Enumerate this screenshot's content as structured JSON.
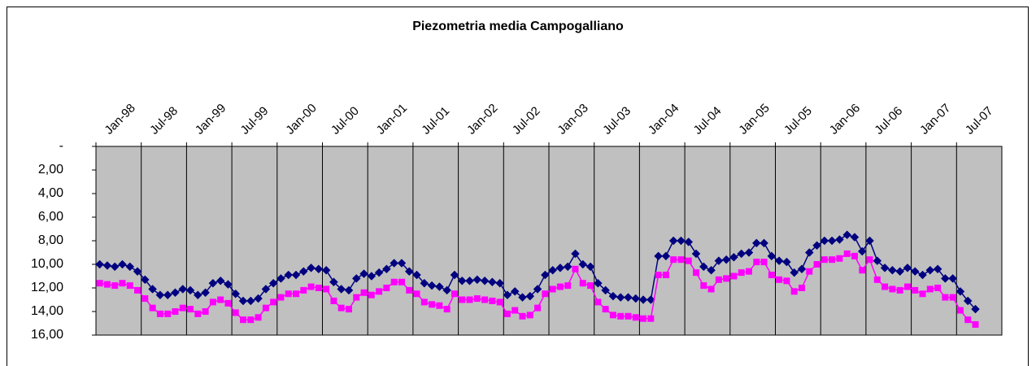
{
  "chart_data": {
    "type": "line",
    "title": "Piezometria media Campogalliano",
    "categories": [
      "Jan-98",
      null,
      null,
      null,
      null,
      null,
      "Jul-98",
      null,
      null,
      null,
      null,
      null,
      "Jan-99",
      null,
      null,
      null,
      null,
      null,
      "Jul-99",
      null,
      null,
      null,
      null,
      null,
      "Jan-00",
      null,
      null,
      null,
      null,
      null,
      "Jul-00",
      null,
      null,
      null,
      null,
      null,
      "Jan-01",
      null,
      null,
      null,
      null,
      null,
      "Jul-01",
      null,
      null,
      null,
      null,
      null,
      "Jan-02",
      null,
      null,
      null,
      null,
      null,
      "Jul-02",
      null,
      null,
      null,
      null,
      null,
      "Jan-03",
      null,
      null,
      null,
      null,
      null,
      "Jul-03",
      null,
      null,
      null,
      null,
      null,
      "Jan-04",
      null,
      null,
      null,
      null,
      null,
      "Jul-04",
      null,
      null,
      null,
      null,
      null,
      "Jan-05",
      null,
      null,
      null,
      null,
      null,
      "Jul-05",
      null,
      null,
      null,
      null,
      null,
      "Jan-06",
      null,
      null,
      null,
      null,
      null,
      "Jul-06",
      null,
      null,
      null,
      null,
      null,
      "Jan-07",
      null,
      null,
      null,
      null,
      null,
      "Jul-07",
      null,
      null,
      null,
      null,
      null
    ],
    "series": [
      {
        "color": "#000080",
        "marker": "diamond",
        "values": [
          10.0,
          10.1,
          10.2,
          10.0,
          10.2,
          10.6,
          11.3,
          12.1,
          12.6,
          12.6,
          12.4,
          12.1,
          12.2,
          12.6,
          12.4,
          11.6,
          11.4,
          11.7,
          12.5,
          13.1,
          13.1,
          12.9,
          12.1,
          11.6,
          11.2,
          10.9,
          10.9,
          10.6,
          10.3,
          10.4,
          10.5,
          11.5,
          12.1,
          12.2,
          11.2,
          10.8,
          11.0,
          10.7,
          10.4,
          9.9,
          9.9,
          10.6,
          10.9,
          11.6,
          11.8,
          11.9,
          12.2,
          10.9,
          11.4,
          11.4,
          11.3,
          11.4,
          11.5,
          11.6,
          12.6,
          12.3,
          12.8,
          12.7,
          12.1,
          10.9,
          10.5,
          10.3,
          10.2,
          9.1,
          10.0,
          10.2,
          11.6,
          12.2,
          12.7,
          12.8,
          12.8,
          12.9,
          13.0,
          13.0,
          9.3,
          9.3,
          8.0,
          8.0,
          8.1,
          9.1,
          10.2,
          10.5,
          9.7,
          9.6,
          9.4,
          9.1,
          9.0,
          8.2,
          8.2,
          9.3,
          9.7,
          9.8,
          10.7,
          10.4,
          9.0,
          8.4,
          8.0,
          8.0,
          7.9,
          7.5,
          7.7,
          8.9,
          8.0,
          9.7,
          10.3,
          10.5,
          10.6,
          10.3,
          10.6,
          10.9,
          10.5,
          10.4,
          11.2,
          11.2,
          12.3,
          13.1,
          13.8,
          null,
          null,
          null
        ]
      },
      {
        "color": "#ff00ff",
        "marker": "square",
        "values": [
          11.6,
          11.7,
          11.8,
          11.6,
          11.8,
          12.2,
          12.9,
          13.7,
          14.2,
          14.2,
          14.0,
          13.7,
          13.8,
          14.2,
          14.0,
          13.2,
          13.0,
          13.3,
          14.1,
          14.7,
          14.7,
          14.5,
          13.7,
          13.2,
          12.8,
          12.5,
          12.5,
          12.2,
          11.9,
          12.0,
          12.1,
          13.1,
          13.7,
          13.8,
          12.8,
          12.4,
          12.6,
          12.3,
          12.0,
          11.5,
          11.5,
          12.2,
          12.5,
          13.2,
          13.4,
          13.5,
          13.8,
          12.5,
          13.0,
          13.0,
          12.9,
          13.0,
          13.1,
          13.2,
          14.2,
          13.9,
          14.4,
          14.3,
          13.7,
          12.5,
          12.1,
          11.9,
          11.8,
          10.4,
          11.6,
          11.8,
          13.2,
          13.8,
          14.3,
          14.4,
          14.4,
          14.5,
          14.6,
          14.6,
          10.9,
          10.9,
          9.6,
          9.6,
          9.7,
          10.7,
          11.8,
          12.1,
          11.3,
          11.2,
          11.0,
          10.7,
          10.6,
          9.8,
          9.8,
          10.9,
          11.3,
          11.4,
          12.3,
          12.0,
          10.6,
          10.0,
          9.6,
          9.6,
          9.5,
          9.1,
          9.3,
          10.5,
          9.6,
          11.3,
          11.9,
          12.1,
          12.2,
          11.9,
          12.2,
          12.5,
          12.1,
          12.0,
          12.8,
          12.8,
          13.9,
          14.7,
          15.1,
          null,
          null,
          null
        ]
      }
    ],
    "ylim": [
      0,
      16
    ],
    "y_reversed": true,
    "yticks": [
      {
        "value": 0,
        "label": "-"
      },
      {
        "value": 2,
        "label": "2,00"
      },
      {
        "value": 4,
        "label": "4,00"
      },
      {
        "value": 6,
        "label": "6,00"
      },
      {
        "value": 8,
        "label": "8,00"
      },
      {
        "value": 10,
        "label": "10,00"
      },
      {
        "value": 12,
        "label": "12,00"
      },
      {
        "value": 14,
        "label": "14,00"
      },
      {
        "value": 16,
        "label": "16,00"
      }
    ],
    "x_axis_position": "top",
    "plot_background": "#c0c0c0"
  }
}
